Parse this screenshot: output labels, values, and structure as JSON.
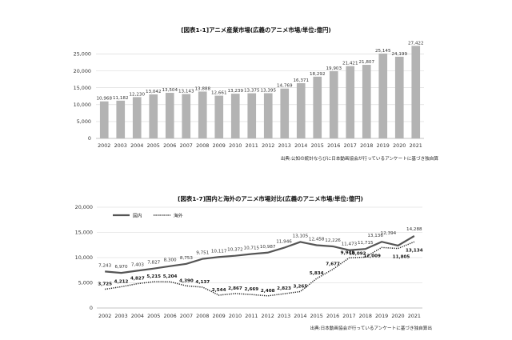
{
  "chart_data": [
    {
      "type": "bar",
      "title": "[図表1-1]アニメ産業市場(広義のアニメ市場/単位:億円)",
      "categories": [
        "2002",
        "2003",
        "2004",
        "2005",
        "2006",
        "2007",
        "2008",
        "2009",
        "2010",
        "2011",
        "2012",
        "2013",
        "2014",
        "2015",
        "2016",
        "2017",
        "2018",
        "2019",
        "2020",
        "2021"
      ],
      "values": [
        10968,
        11182,
        12230,
        13042,
        13504,
        13143,
        13888,
        12661,
        13239,
        13375,
        13395,
        14769,
        16371,
        18292,
        19903,
        21421,
        21807,
        25145,
        24199,
        27422
      ],
      "value_labels": [
        "10,968",
        "11,182",
        "12,230",
        "13,042",
        "13,504",
        "13,143",
        "13,888",
        "12,661",
        "13,239",
        "13,375",
        "13,395",
        "14,769",
        "16,371",
        "18,292",
        "19,903",
        "21,421",
        "21,807",
        "25,145",
        "24,199",
        "27,422"
      ],
      "yticks": [
        "0",
        "5,000",
        "10,000",
        "15,000",
        "20,000",
        "25,000"
      ],
      "ylim": [
        0,
        27500
      ],
      "grid": true,
      "bar_color": "#b3b3b3",
      "source": "出典:公知の統計ならびに日本動画協会が行っているアンケートに基づき独自算"
    },
    {
      "type": "line",
      "title": "[図表1-7]国内と海外のアニメ市場対比(広義のアニメ市場/単位:億円)",
      "categories": [
        "2002",
        "2003",
        "2004",
        "2005",
        "2006",
        "2007",
        "2008",
        "2009",
        "2010",
        "2011",
        "2012",
        "2013",
        "2014",
        "2015",
        "2016",
        "2017",
        "2018",
        "2019",
        "2020",
        "2021"
      ],
      "yticks": [
        "0",
        "5,000",
        "10,000",
        "15,000",
        "20,000"
      ],
      "ylim": [
        0,
        20000
      ],
      "grid": true,
      "legend_position": "top-left",
      "series": [
        {
          "name": "国内",
          "style": "solid",
          "color": "#555555",
          "values": [
            7243,
            6970,
            7403,
            7827,
            8300,
            8753,
            9751,
            10117,
            10372,
            10715,
            10987,
            11946,
            13105,
            12458,
            12226,
            11473,
            11715,
            13136,
            12394,
            14288
          ],
          "labels": [
            "7,243",
            "6,970",
            "7,403",
            "7,827",
            "8,300",
            "8,753",
            "9,751",
            "10,117",
            "10,372",
            "10,715",
            "10,987",
            "11,946",
            "13,105",
            "12,458",
            "12,226",
            "11,473",
            "11,715",
            "13,136",
            "12,394",
            "14,288"
          ]
        },
        {
          "name": "海外",
          "style": "dotted",
          "color": "#222222",
          "values": [
            3725,
            4212,
            4827,
            5215,
            5204,
            4390,
            4137,
            2544,
            2867,
            2669,
            2408,
            2823,
            3265,
            5834,
            7677,
            9948,
            10092,
            12009,
            11805,
            13134
          ],
          "labels": [
            "3,725",
            "4,212",
            "4,827",
            "5,215",
            "5,204",
            "4,390",
            "4,137",
            "2,544",
            "2,867",
            "2,669",
            "2,408",
            "2,823",
            "3,265",
            "5,834",
            "7,677",
            "9,948",
            "10,092",
            "12,009",
            "11,805",
            "13,134"
          ]
        }
      ],
      "source": "出典:日本動画協会が行っているアンケートに基づき独自算出"
    }
  ]
}
